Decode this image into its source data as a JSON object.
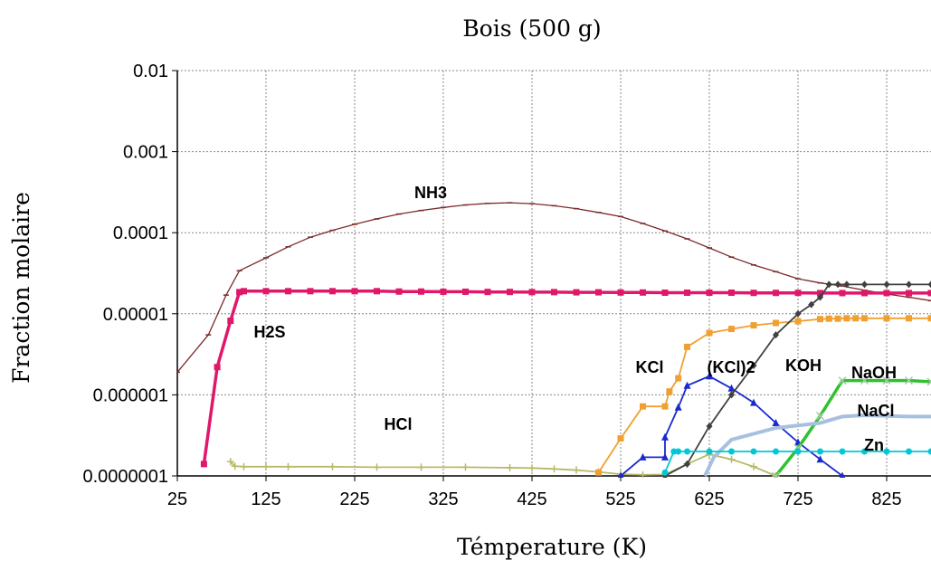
{
  "chart_data": {
    "type": "line",
    "title": "Bois (500 g)",
    "xlabel": "Témperature (K)",
    "ylabel": "Fraction molaire",
    "yscale": "log",
    "xlim": [
      25,
      875
    ],
    "ylim": [
      1e-07,
      0.01
    ],
    "x_ticks": [
      "25",
      "125",
      "225",
      "325",
      "425",
      "525",
      "625",
      "725",
      "825"
    ],
    "y_ticks": [
      "0.0000001",
      "0.000001",
      "0.00001",
      "0.0001",
      "0.001",
      "0.01"
    ],
    "grid": true,
    "series": [
      {
        "name": "NH3",
        "color": "#7b2a2a",
        "marker": "tick",
        "x": [
          25,
          60,
          80,
          95,
          125,
          150,
          175,
          200,
          225,
          250,
          275,
          300,
          325,
          350,
          375,
          400,
          425,
          450,
          475,
          500,
          525,
          550,
          575,
          600,
          625,
          650,
          675,
          700,
          725,
          750,
          775,
          800,
          825,
          850,
          875
        ],
        "y": [
          1.9e-06,
          5.5e-06,
          1.7e-05,
          3.4e-05,
          4.9e-05,
          6.7e-05,
          8.8e-05,
          0.000107,
          0.000127,
          0.000148,
          0.00017,
          0.000188,
          0.000205,
          0.00022,
          0.00023,
          0.000234,
          0.000228,
          0.000215,
          0.000198,
          0.000178,
          0.000158,
          0.00013,
          0.000105,
          8.4e-05,
          6.5e-05,
          5e-05,
          4e-05,
          3.3e-05,
          2.7e-05,
          2.4e-05,
          2.2e-05,
          1.95e-05,
          1.75e-05,
          1.6e-05,
          1.45e-05
        ]
      },
      {
        "name": "H2S",
        "color": "#e0186a",
        "marker": "square",
        "x": [
          55,
          70,
          85,
          95,
          100,
          125,
          150,
          175,
          200,
          225,
          250,
          275,
          300,
          325,
          350,
          375,
          400,
          425,
          450,
          475,
          500,
          525,
          550,
          575,
          600,
          625,
          650,
          675,
          700,
          725,
          750,
          775,
          800,
          825,
          850,
          875
        ],
        "y": [
          1.4e-07,
          2.2e-06,
          8.2e-06,
          1.85e-05,
          1.9e-05,
          1.9e-05,
          1.9e-05,
          1.9e-05,
          1.9e-05,
          1.9e-05,
          1.9e-05,
          1.88e-05,
          1.88e-05,
          1.87e-05,
          1.87e-05,
          1.86e-05,
          1.86e-05,
          1.85e-05,
          1.85e-05,
          1.84e-05,
          1.84e-05,
          1.83e-05,
          1.83e-05,
          1.82e-05,
          1.82e-05,
          1.82e-05,
          1.82e-05,
          1.81e-05,
          1.81e-05,
          1.81e-05,
          1.8e-05,
          1.8e-05,
          1.8e-05,
          1.8e-05,
          1.8e-05,
          1.8e-05
        ]
      },
      {
        "name": "HCl",
        "color": "#b8b86a",
        "marker": "plus",
        "x": [
          85,
          90,
          100,
          125,
          150,
          200,
          250,
          300,
          350,
          400,
          425,
          450,
          475,
          500,
          525,
          550,
          575,
          600,
          625,
          650,
          675,
          700
        ],
        "y": [
          1.5e-07,
          1.32e-07,
          1.3e-07,
          1.3e-07,
          1.3e-07,
          1.3e-07,
          1.28e-07,
          1.28e-07,
          1.28e-07,
          1.26e-07,
          1.25e-07,
          1.22e-07,
          1.18e-07,
          1.12e-07,
          1.05e-07,
          1.03e-07,
          1.04e-07,
          1.4e-07,
          1.85e-07,
          1.6e-07,
          1.3e-07,
          1e-07
        ]
      },
      {
        "name": "KCl",
        "color": "#f0a030",
        "marker": "square",
        "x": [
          500,
          525,
          550,
          575,
          580,
          590,
          600,
          625,
          650,
          675,
          700,
          725,
          750,
          760,
          770,
          780,
          790,
          800,
          825,
          850,
          875
        ],
        "y": [
          1.1e-07,
          2.9e-07,
          7.2e-07,
          7.2e-07,
          1.1e-06,
          1.6e-06,
          3.9e-06,
          5.8e-06,
          6.5e-06,
          7.2e-06,
          7.7e-06,
          8.1e-06,
          8.6e-06,
          8.7e-06,
          8.7e-06,
          8.8e-06,
          8.8e-06,
          8.8e-06,
          8.8e-06,
          8.8e-06,
          8.8e-06
        ]
      },
      {
        "name": "(KCl)2",
        "color": "#1a2ad0",
        "marker": "triangle",
        "x": [
          525,
          550,
          575,
          575,
          590,
          600,
          625,
          650,
          675,
          700,
          725,
          750,
          775
        ],
        "y": [
          1e-07,
          1.7e-07,
          1.7e-07,
          3e-07,
          7e-07,
          1.3e-06,
          1.7e-06,
          1.2e-06,
          8e-07,
          4.5e-07,
          2.6e-07,
          1.6e-07,
          1e-07
        ]
      },
      {
        "name": "KOH",
        "color": "#404040",
        "marker": "diamond",
        "x": [
          575,
          600,
          625,
          650,
          675,
          700,
          725,
          740,
          750,
          760,
          770,
          780,
          800,
          825,
          850,
          875
        ],
        "y": [
          1e-07,
          1.4e-07,
          4.1e-07,
          1e-06,
          2.3e-06,
          5.5e-06,
          1e-05,
          1.3e-05,
          1.6e-05,
          2.3e-05,
          2.3e-05,
          2.3e-05,
          2.3e-05,
          2.3e-05,
          2.3e-05,
          2.3e-05
        ]
      },
      {
        "name": "NaOH",
        "color": "#30c030",
        "marker": "x",
        "x": [
          700,
          725,
          750,
          775,
          800,
          825,
          850,
          875
        ],
        "y": [
          1e-07,
          2.2e-07,
          5.5e-07,
          1.5e-06,
          1.5e-06,
          1.5e-06,
          1.5e-06,
          1.45e-06
        ]
      },
      {
        "name": "NaCl",
        "color": "#a8c0e0",
        "marker": "none",
        "x": [
          620,
          630,
          650,
          700,
          750,
          775,
          800,
          825,
          850,
          875
        ],
        "y": [
          1e-07,
          1.7e-07,
          2.8e-07,
          3.9e-07,
          4.5e-07,
          5.4e-07,
          5.6e-07,
          5.5e-07,
          5.4e-07,
          5.4e-07
        ]
      },
      {
        "name": "Zn",
        "color": "#00c8d8",
        "marker": "circle",
        "x": [
          575,
          585,
          590,
          600,
          625,
          650,
          675,
          700,
          725,
          750,
          775,
          800,
          825,
          850,
          875
        ],
        "y": [
          1.1e-07,
          2e-07,
          2e-07,
          2e-07,
          2e-07,
          2e-07,
          2e-07,
          2e-07,
          2e-07,
          2e-07,
          2e-07,
          2e-07,
          2e-07,
          2e-07,
          2e-07
        ]
      }
    ],
    "annotations": [
      "NH3",
      "H2S",
      "HCl",
      "KCl",
      "(KCl)2",
      "KOH",
      "NaOH",
      "NaCl",
      "Zn"
    ]
  }
}
